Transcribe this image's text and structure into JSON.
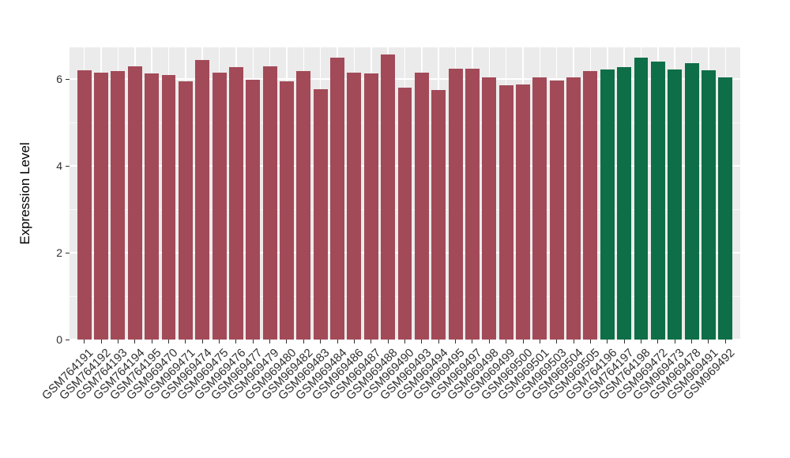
{
  "chart_data": {
    "type": "bar",
    "title": "",
    "xlabel": "",
    "ylabel": "Expression Level",
    "ylim": [
      0,
      6.73
    ],
    "yticks": [
      0,
      2,
      4,
      6
    ],
    "grid": true,
    "legend": "none",
    "panel_background": "#EBEBEB",
    "gridline_color": "#FFFFFF",
    "axis_text_color": "#303030",
    "color_map": {
      "maroon": "#A24A58",
      "green": "#0D6E47"
    },
    "categories": [
      "GSM764191",
      "GSM764192",
      "GSM764193",
      "GSM764194",
      "GSM764195",
      "GSM969470",
      "GSM969471",
      "GSM969474",
      "GSM969475",
      "GSM969476",
      "GSM969477",
      "GSM969479",
      "GSM969480",
      "GSM969482",
      "GSM969483",
      "GSM969484",
      "GSM969486",
      "GSM969487",
      "GSM969488",
      "GSM969490",
      "GSM969493",
      "GSM969494",
      "GSM969495",
      "GSM969497",
      "GSM969498",
      "GSM969499",
      "GSM969500",
      "GSM969501",
      "GSM969503",
      "GSM969504",
      "GSM969505",
      "GSM764196",
      "GSM764197",
      "GSM764198",
      "GSM969472",
      "GSM969473",
      "GSM969478",
      "GSM969491",
      "GSM969492"
    ],
    "values": [
      6.2,
      6.15,
      6.18,
      6.29,
      6.13,
      6.09,
      5.95,
      6.44,
      6.15,
      6.27,
      5.98,
      6.29,
      5.95,
      6.18,
      5.76,
      6.49,
      6.15,
      6.13,
      6.56,
      5.8,
      6.15,
      5.75,
      6.24,
      6.24,
      6.04,
      5.85,
      5.87,
      6.04,
      5.96,
      6.04,
      6.18,
      6.22,
      6.27,
      6.49,
      6.4,
      6.22,
      6.36,
      6.2,
      6.04
    ],
    "groups": [
      "maroon",
      "maroon",
      "maroon",
      "maroon",
      "maroon",
      "maroon",
      "maroon",
      "maroon",
      "maroon",
      "maroon",
      "maroon",
      "maroon",
      "maroon",
      "maroon",
      "maroon",
      "maroon",
      "maroon",
      "maroon",
      "maroon",
      "maroon",
      "maroon",
      "maroon",
      "maroon",
      "maroon",
      "maroon",
      "maroon",
      "maroon",
      "maroon",
      "maroon",
      "maroon",
      "maroon",
      "green",
      "green",
      "green",
      "green",
      "green",
      "green",
      "green",
      "green"
    ]
  }
}
